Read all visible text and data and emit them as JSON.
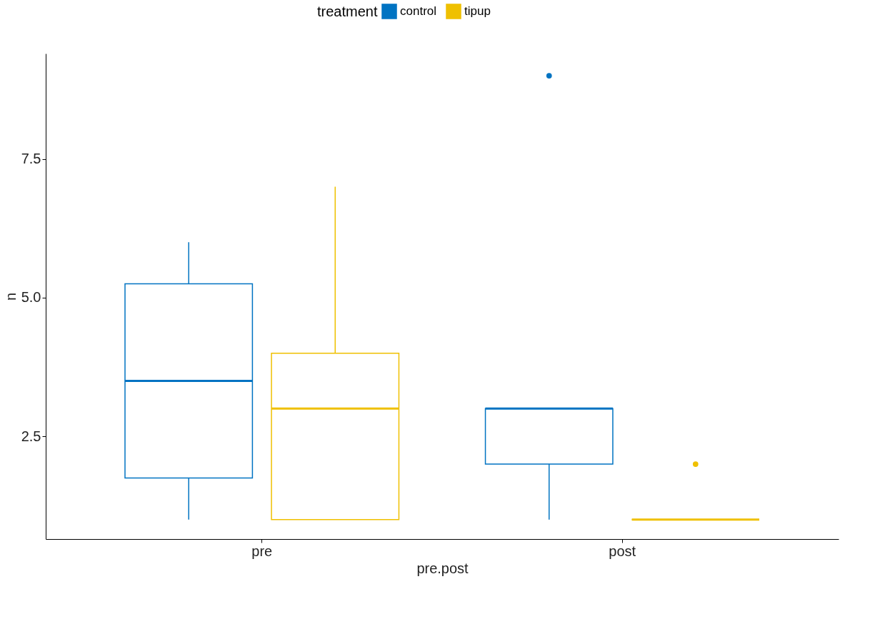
{
  "chart_data": {
    "type": "box",
    "xlabel": "pre.post",
    "ylabel": "n",
    "legend_title": "treatment",
    "legend": "top",
    "categories": [
      "pre",
      "post"
    ],
    "ylim": [
      0.65,
      9.4
    ],
    "yticks": [
      2.5,
      {
        "value": 5,
        "label": "5.0"
      },
      7.5
    ],
    "grid": false,
    "series": [
      {
        "name": "control",
        "color": "#0073c2",
        "boxes": [
          {
            "low": 1,
            "q1": 1.75,
            "median": 3.5,
            "q3": 5.25,
            "high": 6
          },
          {
            "low": 1,
            "q1": 2,
            "median": 3,
            "q3": 3,
            "high": 3,
            "outliers": [
              9
            ]
          }
        ]
      },
      {
        "name": "tipup",
        "color": "#efc000",
        "boxes": [
          {
            "low": 1,
            "q1": 1,
            "median": 3,
            "q3": 4,
            "high": 7
          },
          {
            "low": 1,
            "q1": 1,
            "median": 1,
            "q3": 1,
            "high": 1,
            "outliers": [
              2
            ]
          }
        ]
      }
    ]
  }
}
